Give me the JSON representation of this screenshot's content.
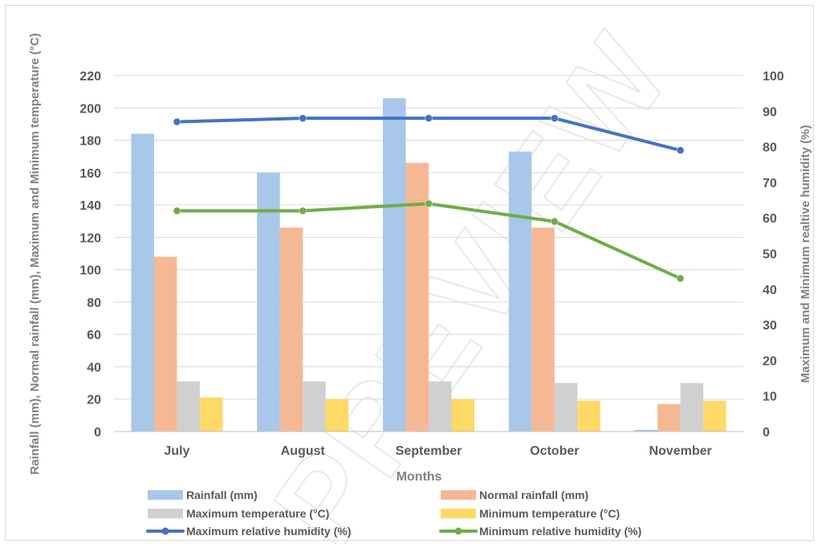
{
  "chart_data": {
    "type": "bar",
    "title": "",
    "xlabel": "Months",
    "ylabel": "Rainfall (mm), Normal rainfall (mm), Maximum and Minimum temperature (°C)",
    "y2label": "Maximum and Minimum realtive humidity (%)",
    "categories": [
      "July",
      "August",
      "September",
      "October",
      "November"
    ],
    "ylim": [
      0,
      220
    ],
    "y_ticks": [
      0,
      20,
      40,
      60,
      80,
      100,
      120,
      140,
      160,
      180,
      200,
      220
    ],
    "y2lim": [
      0,
      100
    ],
    "y2_ticks": [
      0,
      10,
      20,
      30,
      40,
      50,
      60,
      70,
      80,
      90,
      100
    ],
    "grid": true,
    "legend_position": "bottom",
    "watermark": "PREVIEW",
    "bar_series": [
      {
        "name": "Rainfall (mm)",
        "color": "#a9c7e8",
        "values": [
          184,
          160,
          206,
          173,
          1
        ]
      },
      {
        "name": "Normal rainfall (mm)",
        "color": "#f5b895",
        "values": [
          108,
          126,
          166,
          126,
          17
        ]
      },
      {
        "name": "Maximum temperature (°C)",
        "color": "#d0d0d0",
        "values": [
          31,
          31,
          31,
          30,
          30
        ]
      },
      {
        "name": "Minimum temperature (°C)",
        "color": "#ffd966",
        "values": [
          21,
          20,
          20,
          19,
          19
        ]
      }
    ],
    "line_series": [
      {
        "name": "Maximum relative humidity (%)",
        "color": "#4472c4",
        "axis": "y2",
        "values": [
          87,
          88,
          88,
          88,
          79
        ]
      },
      {
        "name": "Minimum relative humidity (%)",
        "color": "#70ad47",
        "axis": "y2",
        "values": [
          62,
          62,
          64,
          59,
          43
        ]
      }
    ]
  }
}
